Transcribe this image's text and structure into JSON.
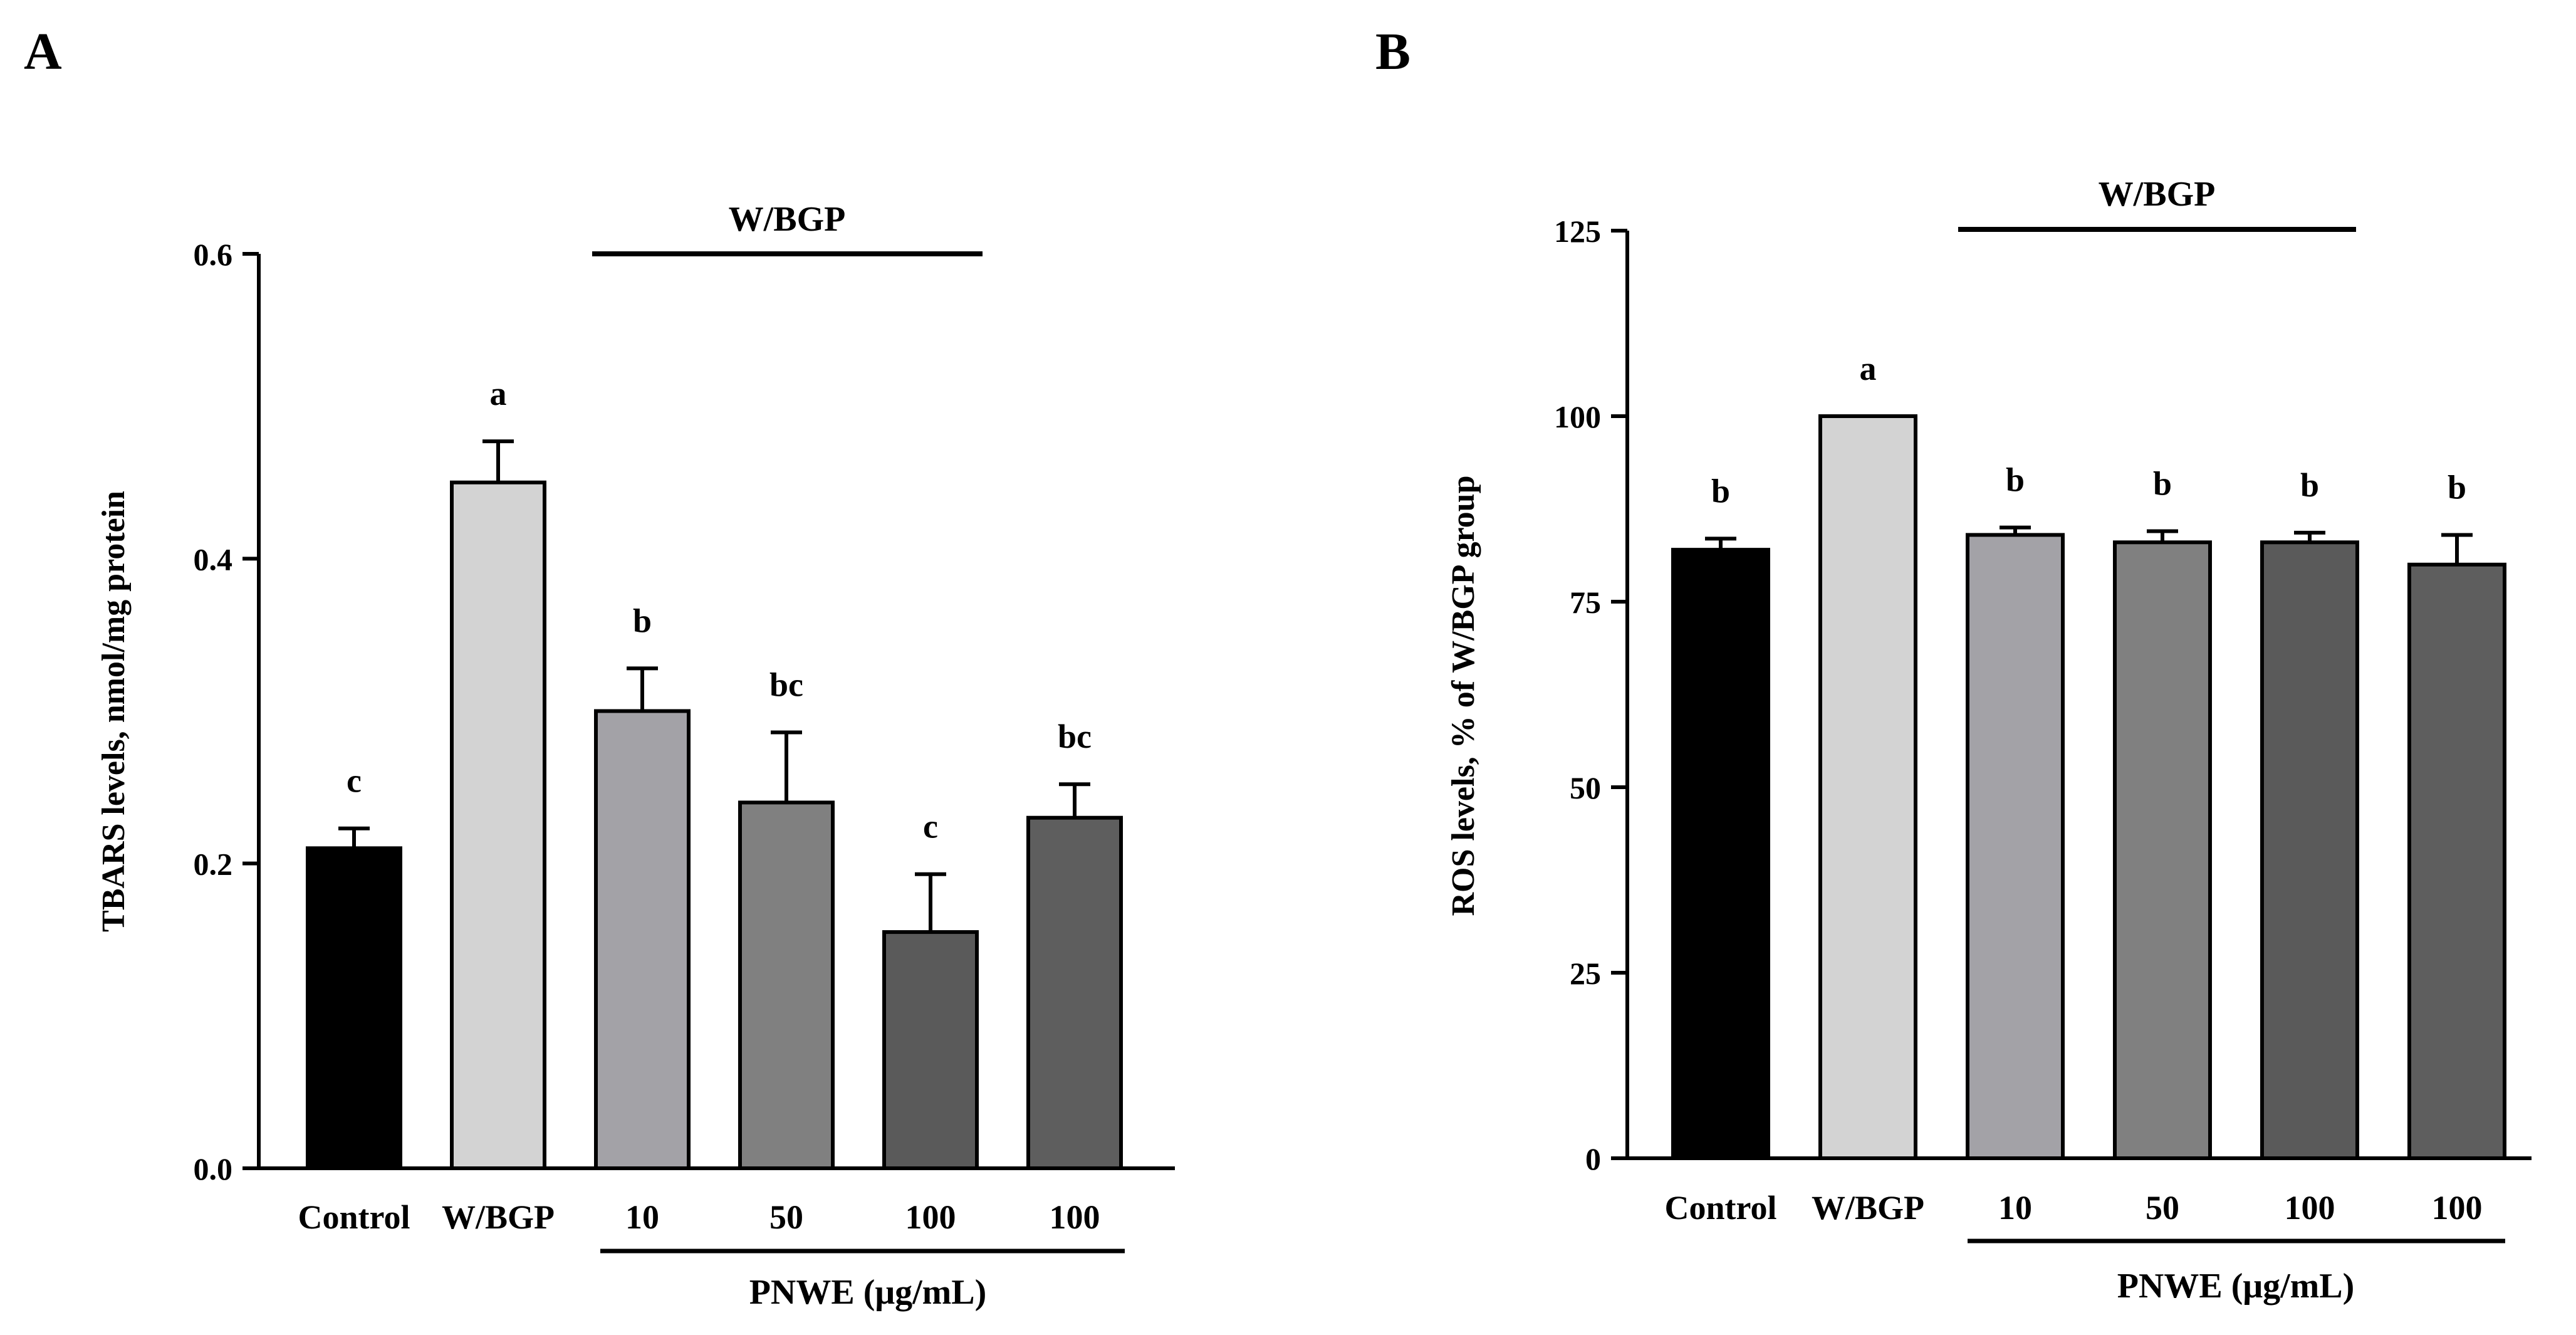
{
  "chart_data": [
    {
      "panel_label": "A",
      "type": "bar",
      "title": "",
      "xlabel": "PNWE (μg/mL)",
      "ylabel": "TBARS levels, nmol/mg protein",
      "ylim": [
        0,
        0.6
      ],
      "yticks": [
        "0.0",
        "0.2",
        "0.4",
        "0.6"
      ],
      "ytick_values": [
        0,
        0.2,
        0.4,
        0.6
      ],
      "group_label": "W/BGP",
      "categories": [
        "Control",
        "W/BGP",
        "10",
        "50",
        "100",
        "100"
      ],
      "values": [
        0.21,
        0.45,
        0.3,
        0.24,
        0.155,
        0.23
      ],
      "errors": [
        0.013,
        0.027,
        0.028,
        0.046,
        0.038,
        0.022
      ],
      "significance": [
        "c",
        "a",
        "b",
        "bc",
        "c",
        "bc"
      ],
      "colors": [
        "#000000",
        "#d3d3d3",
        "#a3a2a7",
        "#808080",
        "#5a5a5a",
        "#5e5e5e"
      ]
    },
    {
      "panel_label": "B",
      "type": "bar",
      "title": "",
      "xlabel": "PNWE (μg/mL)",
      "ylabel": "ROS levels, % of W/BGP group",
      "ylim": [
        0,
        125
      ],
      "yticks": [
        "0",
        "25",
        "50",
        "75",
        "100",
        "125"
      ],
      "ytick_values": [
        0,
        25,
        50,
        75,
        100,
        125
      ],
      "group_label": "W/BGP",
      "categories": [
        "Control",
        "W/BGP",
        "10",
        "50",
        "100",
        "100"
      ],
      "values": [
        82,
        100,
        84,
        83,
        83,
        80
      ],
      "errors": [
        1.5,
        0,
        1.0,
        1.5,
        1.3,
        4.0
      ],
      "significance": [
        "b",
        "a",
        "b",
        "b",
        "b",
        "b"
      ],
      "colors": [
        "#000000",
        "#d3d3d3",
        "#a3a2a7",
        "#808080",
        "#5a5a5a",
        "#5e5e5e"
      ]
    }
  ]
}
